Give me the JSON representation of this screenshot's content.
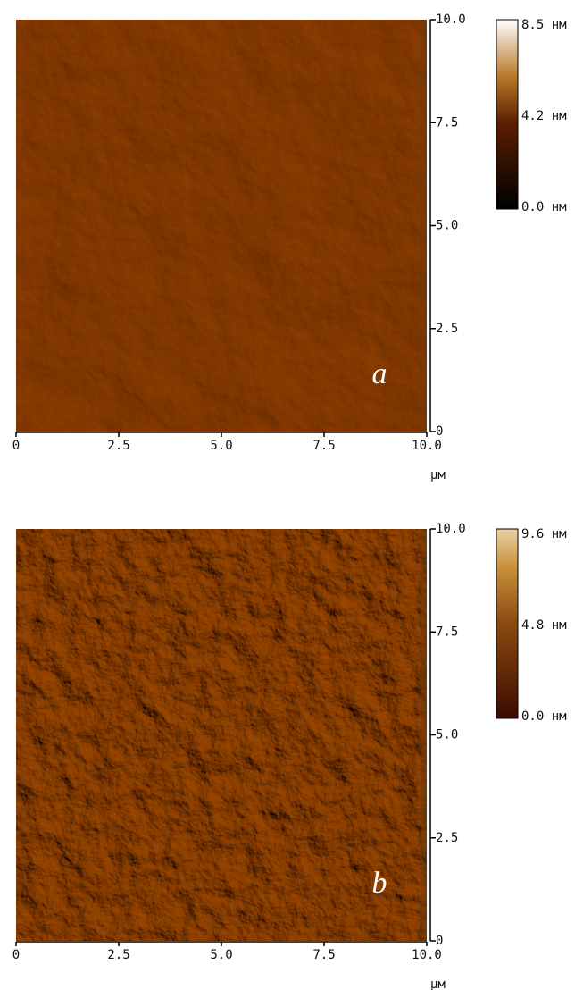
{
  "panels": [
    {
      "label": "a",
      "y_ticks": [
        "10.0",
        "7.5",
        "5.0",
        "2.5",
        "0"
      ],
      "x_ticks": [
        "0",
        "2.5",
        "5.0",
        "7.5",
        "10.0"
      ],
      "x_unit": "μм",
      "colorbar": [
        "8.5 нм",
        "4.2 нм",
        "0.0 нм"
      ]
    },
    {
      "label": "b",
      "y_ticks": [
        "10.0",
        "7.5",
        "5.0",
        "2.5",
        "0"
      ],
      "x_ticks": [
        "0",
        "2.5",
        "5.0",
        "7.5",
        "10.0"
      ],
      "x_unit": "μм",
      "colorbar": [
        "9.6 нм",
        "4.8 нм",
        "0.0 нм"
      ]
    }
  ]
}
